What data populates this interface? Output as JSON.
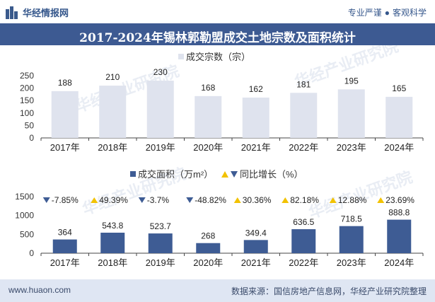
{
  "header": {
    "logo_text": "华经情报网",
    "slogan_left": "专业严谨",
    "slogan_right": "客观科学",
    "slogan_dot": "●"
  },
  "title": "2017-2024年锡林郭勒盟成交土地宗数及面积统计",
  "footer": {
    "website": "www.huaon.com",
    "source": "数据来源：国信房地产信息网，华经产业研究院整理"
  },
  "watermark": "华经产业研究院",
  "colors": {
    "brand": "#3d5a92",
    "bar_count": "#dfe3ee",
    "bar_area": "#3e5c94",
    "up": "#f2c200",
    "down": "#3e5c94"
  },
  "chart_data": [
    {
      "type": "bar",
      "legend": [
        "成交宗数（宗）"
      ],
      "categories": [
        "2017年",
        "2018年",
        "2019年",
        "2020年",
        "2021年",
        "2022年",
        "2023年",
        "2024年"
      ],
      "series": [
        {
          "name": "成交宗数（宗）",
          "values": [
            188,
            210,
            230,
            168,
            162,
            181,
            195,
            165
          ]
        }
      ],
      "ylim": [
        0,
        250
      ],
      "yticks": [
        0,
        50,
        100,
        150,
        200,
        250
      ],
      "data_labels": [
        "188",
        "210",
        "230",
        "168",
        "162",
        "181",
        "195",
        "165"
      ]
    },
    {
      "type": "bar",
      "legend": [
        "成交面积（万m²）",
        "同比增长（%）"
      ],
      "categories": [
        "2017年",
        "2018年",
        "2019年",
        "2020年",
        "2021年",
        "2022年",
        "2023年",
        "2024年"
      ],
      "series": [
        {
          "name": "成交面积（万m²）",
          "values": [
            364,
            543.8,
            523.7,
            268,
            349.4,
            636.5,
            718.5,
            888.8
          ]
        },
        {
          "name": "同比增长（%）",
          "values": [
            -7.85,
            49.39,
            -3.7,
            -48.82,
            30.36,
            82.18,
            12.88,
            23.69
          ]
        }
      ],
      "ylim": [
        0,
        1500
      ],
      "yticks": [
        0,
        500,
        1000,
        1500
      ],
      "data_labels": [
        "364",
        "543.8",
        "523.7",
        "268",
        "349.4",
        "636.5",
        "718.5",
        "888.8"
      ],
      "growth_labels": [
        "-7.85%",
        "49.39%",
        "-3.7%",
        "-48.82%",
        "30.36%",
        "82.18%",
        "12.88%",
        "23.69%"
      ]
    }
  ]
}
